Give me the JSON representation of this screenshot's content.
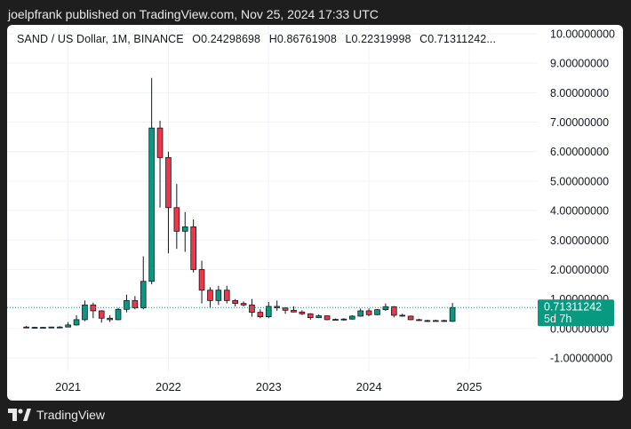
{
  "publisher_line": "joelpfrank published on TradingView.com, Nov 25, 2024 17:33 UTC",
  "brand": {
    "name": "TradingView",
    "icon": "tradingview-logo-icon"
  },
  "legend": {
    "symbol": "SAND / US Dollar, 1M, BINANCE",
    "open": "O0.24298698",
    "high": "H0.86761908",
    "low": "L0.22319998",
    "close": "C0.71311242..."
  },
  "price_badge": {
    "price": "0.71311242",
    "countdown": "5d 7h"
  },
  "colors": {
    "up": "#089981",
    "down": "#f23645",
    "grid": "#f0f3fa",
    "text": "#131722",
    "price_line": "#089981",
    "frame": "#1e1e1e"
  },
  "chart_data": {
    "type": "candlestick",
    "title": "SAND / US Dollar, 1M, BINANCE",
    "interval": "1M",
    "ylim": [
      -1.45,
      10.3
    ],
    "y_ticks": [
      -1,
      0,
      1,
      2,
      3,
      4,
      5,
      6,
      7,
      8,
      9,
      10
    ],
    "y_tick_labels": [
      "-1.00000000",
      "0.00000000",
      "1.00000000",
      "2.00000000",
      "3.00000000",
      "4.00000000",
      "5.00000000",
      "6.00000000",
      "7.00000000",
      "8.00000000",
      "9.00000000",
      "10.00000000"
    ],
    "x_ticks": [
      "2021",
      "2022",
      "2023",
      "2024",
      "2025"
    ],
    "x_tick_index": [
      5,
      17,
      29,
      41,
      53
    ],
    "x_range_index": [
      -2.3,
      61.2
    ],
    "last_price": 0.71311242,
    "candles": [
      {
        "month": "2020-08",
        "o": 0.05,
        "h": 0.09,
        "l": 0.03,
        "c": 0.04
      },
      {
        "month": "2020-09",
        "o": 0.04,
        "h": 0.06,
        "l": 0.03,
        "c": 0.04
      },
      {
        "month": "2020-10",
        "o": 0.04,
        "h": 0.05,
        "l": 0.03,
        "c": 0.04
      },
      {
        "month": "2020-11",
        "o": 0.04,
        "h": 0.06,
        "l": 0.03,
        "c": 0.05
      },
      {
        "month": "2020-12",
        "o": 0.05,
        "h": 0.08,
        "l": 0.04,
        "c": 0.05
      },
      {
        "month": "2021-01",
        "o": 0.05,
        "h": 0.22,
        "l": 0.04,
        "c": 0.12
      },
      {
        "month": "2021-02",
        "o": 0.12,
        "h": 0.45,
        "l": 0.1,
        "c": 0.3
      },
      {
        "month": "2021-03",
        "o": 0.3,
        "h": 0.95,
        "l": 0.25,
        "c": 0.8
      },
      {
        "month": "2021-04",
        "o": 0.8,
        "h": 0.88,
        "l": 0.35,
        "c": 0.6
      },
      {
        "month": "2021-05",
        "o": 0.6,
        "h": 0.62,
        "l": 0.2,
        "c": 0.35
      },
      {
        "month": "2021-06",
        "o": 0.35,
        "h": 0.45,
        "l": 0.22,
        "c": 0.3
      },
      {
        "month": "2021-07",
        "o": 0.3,
        "h": 0.7,
        "l": 0.28,
        "c": 0.65
      },
      {
        "month": "2021-08",
        "o": 0.65,
        "h": 1.15,
        "l": 0.55,
        "c": 0.95
      },
      {
        "month": "2021-09",
        "o": 0.95,
        "h": 1.1,
        "l": 0.65,
        "c": 0.7
      },
      {
        "month": "2021-10",
        "o": 0.7,
        "h": 2.45,
        "l": 0.65,
        "c": 1.6
      },
      {
        "month": "2021-11",
        "o": 1.6,
        "h": 8.5,
        "l": 1.5,
        "c": 6.8
      },
      {
        "month": "2021-12",
        "o": 6.8,
        "h": 7.05,
        "l": 4.1,
        "c": 5.8
      },
      {
        "month": "2022-01",
        "o": 5.8,
        "h": 6.0,
        "l": 2.55,
        "c": 4.1
      },
      {
        "month": "2022-02",
        "o": 4.1,
        "h": 4.9,
        "l": 2.7,
        "c": 3.3
      },
      {
        "month": "2022-03",
        "o": 3.3,
        "h": 3.95,
        "l": 2.6,
        "c": 3.45
      },
      {
        "month": "2022-04",
        "o": 3.45,
        "h": 3.7,
        "l": 1.9,
        "c": 2.0
      },
      {
        "month": "2022-05",
        "o": 2.0,
        "h": 2.3,
        "l": 0.85,
        "c": 1.3
      },
      {
        "month": "2022-06",
        "o": 1.3,
        "h": 1.4,
        "l": 0.7,
        "c": 0.95
      },
      {
        "month": "2022-07",
        "o": 0.95,
        "h": 1.45,
        "l": 0.8,
        "c": 1.3
      },
      {
        "month": "2022-08",
        "o": 1.3,
        "h": 1.45,
        "l": 0.85,
        "c": 0.95
      },
      {
        "month": "2022-09",
        "o": 0.95,
        "h": 1.0,
        "l": 0.75,
        "c": 0.85
      },
      {
        "month": "2022-10",
        "o": 0.85,
        "h": 0.92,
        "l": 0.75,
        "c": 0.8
      },
      {
        "month": "2022-11",
        "o": 0.8,
        "h": 1.0,
        "l": 0.4,
        "c": 0.55
      },
      {
        "month": "2022-12",
        "o": 0.55,
        "h": 0.65,
        "l": 0.35,
        "c": 0.4
      },
      {
        "month": "2023-01",
        "o": 0.4,
        "h": 0.9,
        "l": 0.35,
        "c": 0.75
      },
      {
        "month": "2023-02",
        "o": 0.75,
        "h": 0.95,
        "l": 0.6,
        "c": 0.7
      },
      {
        "month": "2023-03",
        "o": 0.7,
        "h": 0.72,
        "l": 0.5,
        "c": 0.62
      },
      {
        "month": "2023-04",
        "o": 0.62,
        "h": 0.75,
        "l": 0.55,
        "c": 0.56
      },
      {
        "month": "2023-05",
        "o": 0.56,
        "h": 0.62,
        "l": 0.46,
        "c": 0.5
      },
      {
        "month": "2023-06",
        "o": 0.5,
        "h": 0.52,
        "l": 0.3,
        "c": 0.37
      },
      {
        "month": "2023-07",
        "o": 0.37,
        "h": 0.48,
        "l": 0.35,
        "c": 0.43
      },
      {
        "month": "2023-08",
        "o": 0.43,
        "h": 0.45,
        "l": 0.28,
        "c": 0.3
      },
      {
        "month": "2023-09",
        "o": 0.3,
        "h": 0.34,
        "l": 0.28,
        "c": 0.31
      },
      {
        "month": "2023-10",
        "o": 0.31,
        "h": 0.35,
        "l": 0.27,
        "c": 0.32
      },
      {
        "month": "2023-11",
        "o": 0.32,
        "h": 0.45,
        "l": 0.3,
        "c": 0.42
      },
      {
        "month": "2023-12",
        "o": 0.42,
        "h": 0.68,
        "l": 0.4,
        "c": 0.6
      },
      {
        "month": "2024-01",
        "o": 0.6,
        "h": 0.68,
        "l": 0.42,
        "c": 0.47
      },
      {
        "month": "2024-02",
        "o": 0.47,
        "h": 0.66,
        "l": 0.45,
        "c": 0.64
      },
      {
        "month": "2024-03",
        "o": 0.64,
        "h": 0.85,
        "l": 0.6,
        "c": 0.74
      },
      {
        "month": "2024-04",
        "o": 0.74,
        "h": 0.76,
        "l": 0.38,
        "c": 0.45
      },
      {
        "month": "2024-05",
        "o": 0.45,
        "h": 0.5,
        "l": 0.4,
        "c": 0.42
      },
      {
        "month": "2024-06",
        "o": 0.42,
        "h": 0.44,
        "l": 0.28,
        "c": 0.3
      },
      {
        "month": "2024-07",
        "o": 0.3,
        "h": 0.33,
        "l": 0.26,
        "c": 0.27
      },
      {
        "month": "2024-08",
        "o": 0.27,
        "h": 0.3,
        "l": 0.22,
        "c": 0.25
      },
      {
        "month": "2024-09",
        "o": 0.25,
        "h": 0.3,
        "l": 0.24,
        "c": 0.27
      },
      {
        "month": "2024-10",
        "o": 0.27,
        "h": 0.3,
        "l": 0.23,
        "c": 0.24
      },
      {
        "month": "2024-11",
        "o": 0.24298698,
        "h": 0.86761908,
        "l": 0.22319998,
        "c": 0.71311242
      }
    ]
  }
}
